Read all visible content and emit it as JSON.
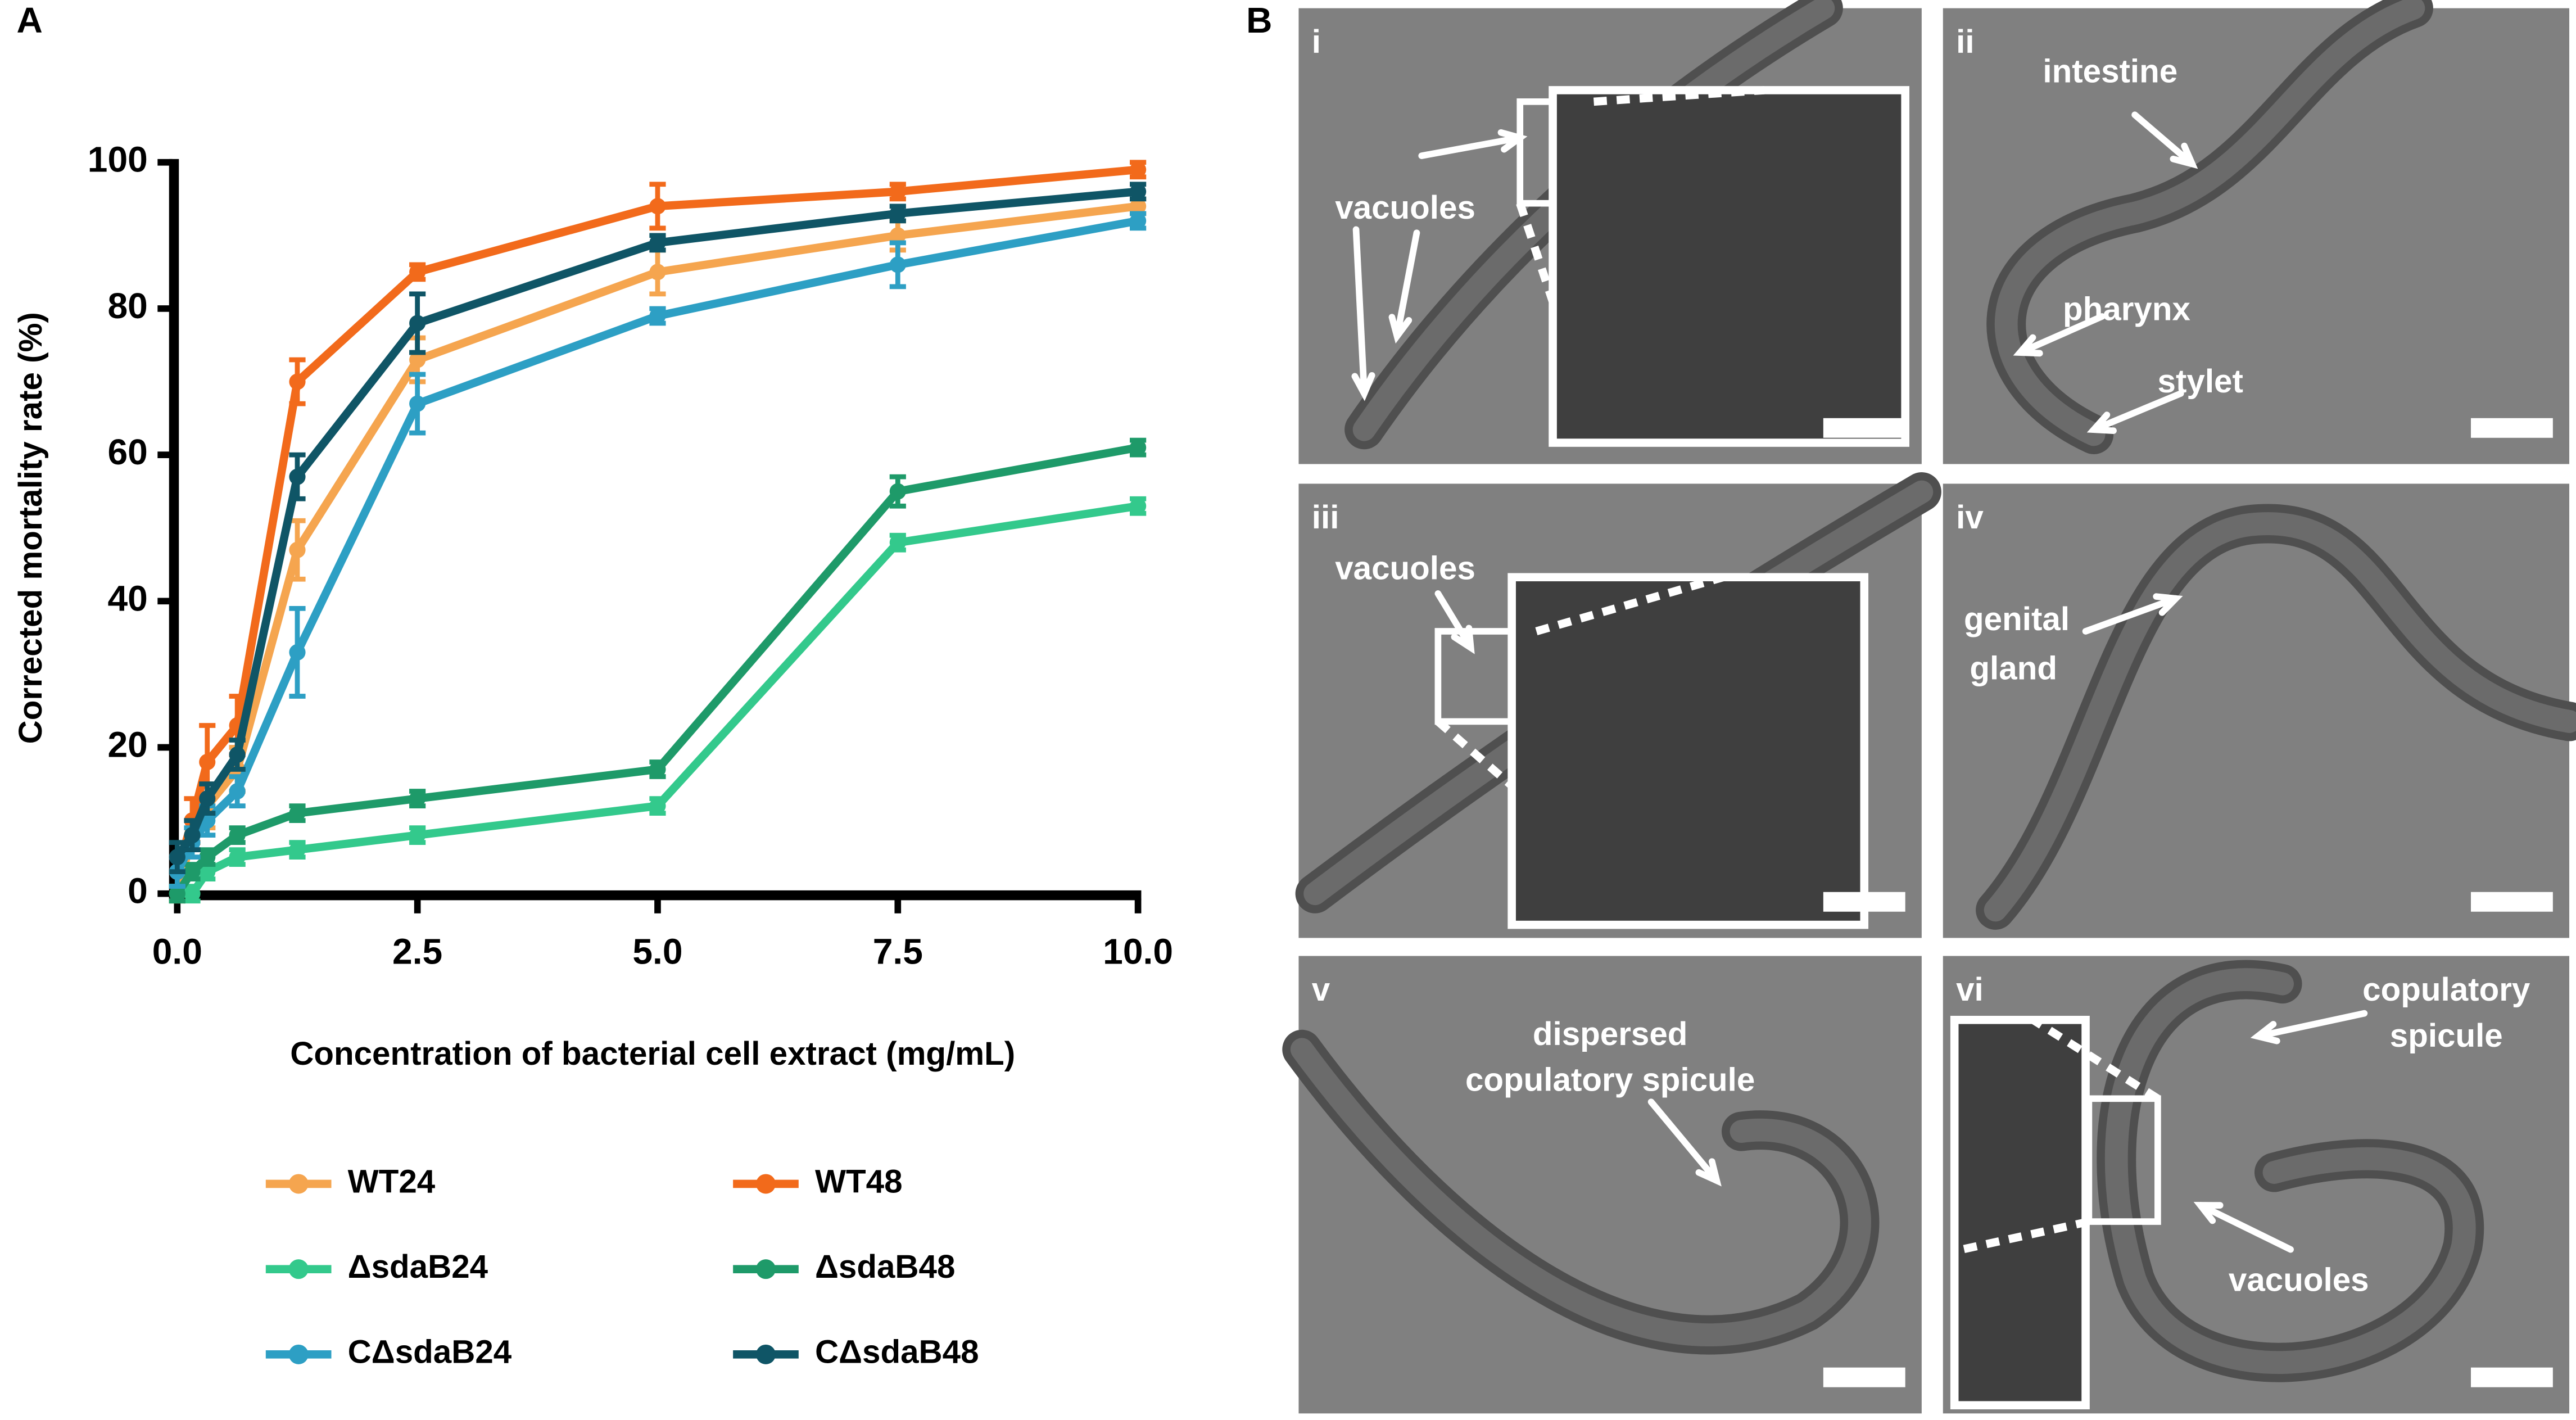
{
  "panel_labels": [
    "A",
    "B"
  ],
  "chart_data": {
    "type": "line",
    "x_label": "Concentration of bacterial cell extract (mg/mL)",
    "y_label": "Corrected mortality rate (%)",
    "x": [
      0,
      0.156,
      0.3125,
      0.625,
      1.25,
      2.5,
      5,
      7.5,
      10
    ],
    "xlim": [
      0,
      10
    ],
    "xticks": [
      {
        "value": 0,
        "label": "0.0"
      },
      {
        "value": 2.5,
        "label": "2.5"
      },
      {
        "value": 5,
        "label": "5.0"
      },
      {
        "value": 7.5,
        "label": "7.5"
      },
      {
        "value": 10,
        "label": "10.0"
      }
    ],
    "ylim": [
      0,
      100
    ],
    "yticks": [
      0,
      20,
      40,
      60,
      80,
      100
    ],
    "series": [
      {
        "name": "WT24",
        "color": "#f5a54f",
        "values": [
          0,
          8,
          12,
          17,
          47,
          73,
          85,
          90,
          94
        ],
        "errors": [
          1,
          2,
          3,
          3,
          4,
          3,
          3,
          2,
          1
        ]
      },
      {
        "name": "WT48",
        "color": "#f26a1b",
        "values": [
          3,
          10,
          18,
          23,
          70,
          85,
          94,
          96,
          99
        ],
        "errors": [
          2,
          3,
          5,
          4,
          3,
          1,
          3,
          1,
          1
        ]
      },
      {
        "name": "ΔsdaB24",
        "color": "#33c98c",
        "values": [
          0,
          0,
          3,
          5,
          6,
          8,
          12,
          48,
          53
        ],
        "errors": [
          1,
          1,
          1,
          1,
          1,
          1,
          1,
          1,
          1
        ]
      },
      {
        "name": "ΔsdaB48",
        "color": "#1e9a69",
        "values": [
          0,
          3,
          5,
          8,
          11,
          13,
          17,
          55,
          61
        ],
        "errors": [
          1,
          1,
          1,
          1,
          1,
          1,
          1,
          2,
          1
        ]
      },
      {
        "name": "CΔsdaB24",
        "color": "#2d9fc4",
        "values": [
          3,
          7,
          10,
          14,
          33,
          67,
          79,
          86,
          92
        ],
        "errors": [
          2,
          2,
          2,
          2,
          6,
          4,
          1,
          3,
          1
        ]
      },
      {
        "name": "CΔsdaB48",
        "color": "#0f5566",
        "values": [
          5,
          8,
          13,
          19,
          57,
          78,
          89,
          93,
          96
        ],
        "errors": [
          2,
          2,
          2,
          2,
          3,
          4,
          1,
          1,
          1
        ]
      }
    ]
  },
  "micrographs": [
    {
      "label": "i",
      "annotations": [
        {
          "lines": [
            "vacuoles"
          ]
        }
      ]
    },
    {
      "label": "ii",
      "annotations": [
        {
          "lines": [
            "intestine"
          ]
        },
        {
          "lines": [
            "pharynx"
          ]
        },
        {
          "lines": [
            "stylet"
          ]
        }
      ]
    },
    {
      "label": "iii",
      "annotations": [
        {
          "lines": [
            "vacuoles"
          ]
        }
      ]
    },
    {
      "label": "iv",
      "annotations": [
        {
          "lines": [
            "genital",
            "gland"
          ]
        }
      ]
    },
    {
      "label": "v",
      "annotations": [
        {
          "lines": [
            "dispersed",
            "copulatory spicule"
          ]
        }
      ]
    },
    {
      "label": "vi",
      "annotations": [
        {
          "lines": [
            "copulatory",
            "spicule"
          ]
        },
        {
          "lines": [
            "vacuoles"
          ]
        }
      ]
    }
  ]
}
